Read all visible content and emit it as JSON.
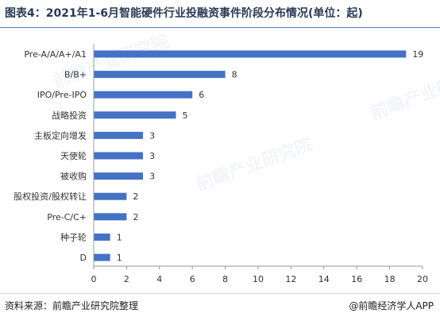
{
  "title": "图表4：2021年1-6月智能硬件行业投融资事件阶段分布情况(单位：起)",
  "footer": {
    "source": "资料来源：前瞻产业研究院整理",
    "brand": "@前瞻经济学人APP"
  },
  "watermark": "前瞻产业研究院",
  "colors": {
    "bar": "#4472c4",
    "axis": "#999999",
    "text": "#333333"
  },
  "chart_data": {
    "type": "bar",
    "orientation": "horizontal",
    "categories": [
      "Pre-A/A/A+/A1",
      "B/B+",
      "IPO/Pre-IPO",
      "战略投资",
      "主板定向增发",
      "天使轮",
      "被收购",
      "股权投资/股权转让",
      "Pre-C/C+",
      "种子轮",
      "D"
    ],
    "values": [
      19,
      8,
      6,
      5,
      3,
      3,
      3,
      2,
      2,
      1,
      1
    ],
    "xlim": [
      0,
      20
    ],
    "xticks": [
      0,
      2,
      4,
      6,
      8,
      10,
      12,
      14,
      16,
      18,
      20
    ],
    "grid": false,
    "data_labels": true
  }
}
